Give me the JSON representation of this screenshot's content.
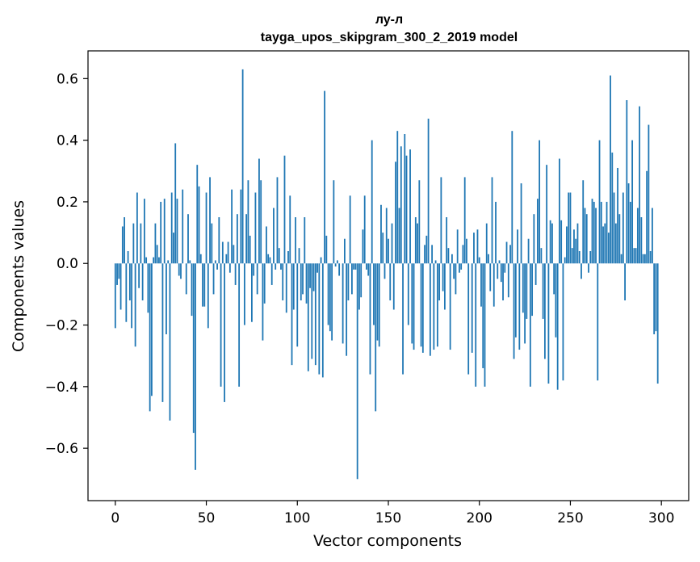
{
  "chart_data": {
    "type": "bar",
    "title_line1": "лу-л",
    "title_line2": "tayga_upos_skipgram_300_2_2019 model",
    "xlabel": "Vector components",
    "ylabel": "Components values",
    "xlim": [
      -15,
      315
    ],
    "ylim": [
      -0.77,
      0.69
    ],
    "x_ticks": [
      0,
      50,
      100,
      150,
      200,
      250,
      300
    ],
    "x_tick_labels": [
      "0",
      "50",
      "100",
      "150",
      "200",
      "250",
      "300"
    ],
    "y_ticks": [
      -0.6,
      -0.4,
      -0.2,
      0.0,
      0.2,
      0.4,
      0.6
    ],
    "y_tick_labels": [
      "−0.6",
      "−0.4",
      "−0.2",
      "0.0",
      "0.2",
      "0.4",
      "0.6"
    ],
    "bar_color": "#1f77b4",
    "values": [
      -0.21,
      -0.07,
      -0.05,
      -0.15,
      0.12,
      0.15,
      -0.19,
      0.04,
      -0.12,
      -0.21,
      0.13,
      -0.27,
      0.23,
      -0.08,
      0.13,
      -0.12,
      0.21,
      0.02,
      -0.16,
      -0.48,
      -0.43,
      0.02,
      0.13,
      0.06,
      0.02,
      0.2,
      -0.45,
      0.21,
      -0.23,
      0.01,
      -0.51,
      0.23,
      0.1,
      0.39,
      0.21,
      -0.04,
      -0.05,
      0.24,
      0.0,
      -0.1,
      0.16,
      0.01,
      -0.17,
      -0.55,
      -0.67,
      0.32,
      0.25,
      0.03,
      -0.14,
      -0.14,
      0.23,
      -0.21,
      0.28,
      0.13,
      -0.1,
      0.01,
      -0.02,
      0.15,
      -0.4,
      0.07,
      -0.45,
      0.03,
      0.07,
      -0.03,
      0.24,
      0.06,
      -0.07,
      0.16,
      -0.4,
      0.24,
      0.63,
      -0.2,
      0.16,
      0.27,
      0.09,
      -0.19,
      -0.04,
      0.23,
      -0.1,
      0.34,
      0.27,
      -0.25,
      -0.13,
      0.12,
      0.03,
      0.02,
      -0.07,
      0.18,
      -0.02,
      0.28,
      0.05,
      -0.02,
      -0.12,
      0.35,
      -0.16,
      0.04,
      0.22,
      -0.33,
      -0.15,
      0.15,
      -0.27,
      0.05,
      -0.12,
      -0.1,
      0.15,
      -0.13,
      -0.35,
      -0.08,
      -0.31,
      -0.09,
      -0.33,
      -0.03,
      -0.36,
      0.02,
      -0.37,
      0.56,
      0.09,
      -0.2,
      -0.22,
      -0.25,
      0.27,
      -0.01,
      0.01,
      -0.04,
      0.0,
      -0.26,
      0.08,
      -0.3,
      -0.12,
      0.22,
      -0.1,
      -0.02,
      -0.02,
      -0.7,
      -0.15,
      -0.11,
      0.11,
      0.22,
      -0.02,
      -0.04,
      -0.36,
      0.4,
      -0.2,
      -0.48,
      -0.25,
      -0.27,
      0.19,
      0.1,
      -0.05,
      0.18,
      0.08,
      -0.12,
      0.13,
      -0.15,
      0.33,
      0.43,
      0.18,
      0.38,
      -0.36,
      0.42,
      0.35,
      -0.2,
      0.37,
      -0.26,
      -0.28,
      0.15,
      0.13,
      0.27,
      -0.27,
      -0.29,
      0.06,
      0.09,
      0.47,
      -0.3,
      0.06,
      -0.28,
      0.01,
      -0.27,
      -0.12,
      0.28,
      -0.09,
      -0.15,
      0.15,
      0.05,
      -0.28,
      0.03,
      -0.05,
      -0.1,
      0.11,
      -0.03,
      -0.02,
      0.06,
      0.28,
      0.08,
      -0.36,
      0.0,
      -0.29,
      0.1,
      -0.4,
      0.11,
      0.02,
      -0.14,
      -0.34,
      -0.4,
      0.13,
      0.03,
      -0.09,
      0.28,
      -0.14,
      0.2,
      -0.05,
      0.01,
      -0.06,
      -0.12,
      -0.03,
      0.07,
      -0.11,
      0.06,
      0.43,
      -0.31,
      -0.24,
      0.11,
      -0.28,
      0.26,
      -0.16,
      -0.26,
      -0.18,
      0.08,
      -0.4,
      -0.17,
      0.16,
      -0.07,
      0.21,
      0.4,
      0.05,
      -0.18,
      -0.31,
      0.32,
      -0.39,
      0.14,
      0.13,
      -0.1,
      -0.24,
      -0.41,
      0.34,
      0.14,
      -0.38,
      0.02,
      0.12,
      0.23,
      0.23,
      0.05,
      0.11,
      0.08,
      0.13,
      0.04,
      -0.05,
      0.27,
      0.18,
      0.16,
      -0.03,
      0.04,
      0.21,
      0.2,
      0.18,
      -0.38,
      0.4,
      0.2,
      0.12,
      0.13,
      0.2,
      0.1,
      0.61,
      0.36,
      0.23,
      0.13,
      0.31,
      0.16,
      0.03,
      0.23,
      -0.12,
      0.53,
      0.26,
      0.2,
      0.4,
      0.05,
      0.05,
      0.18,
      0.51,
      0.15,
      0.03,
      0.03,
      0.3,
      0.45,
      0.04,
      0.18,
      -0.23,
      -0.22,
      -0.39
    ]
  }
}
